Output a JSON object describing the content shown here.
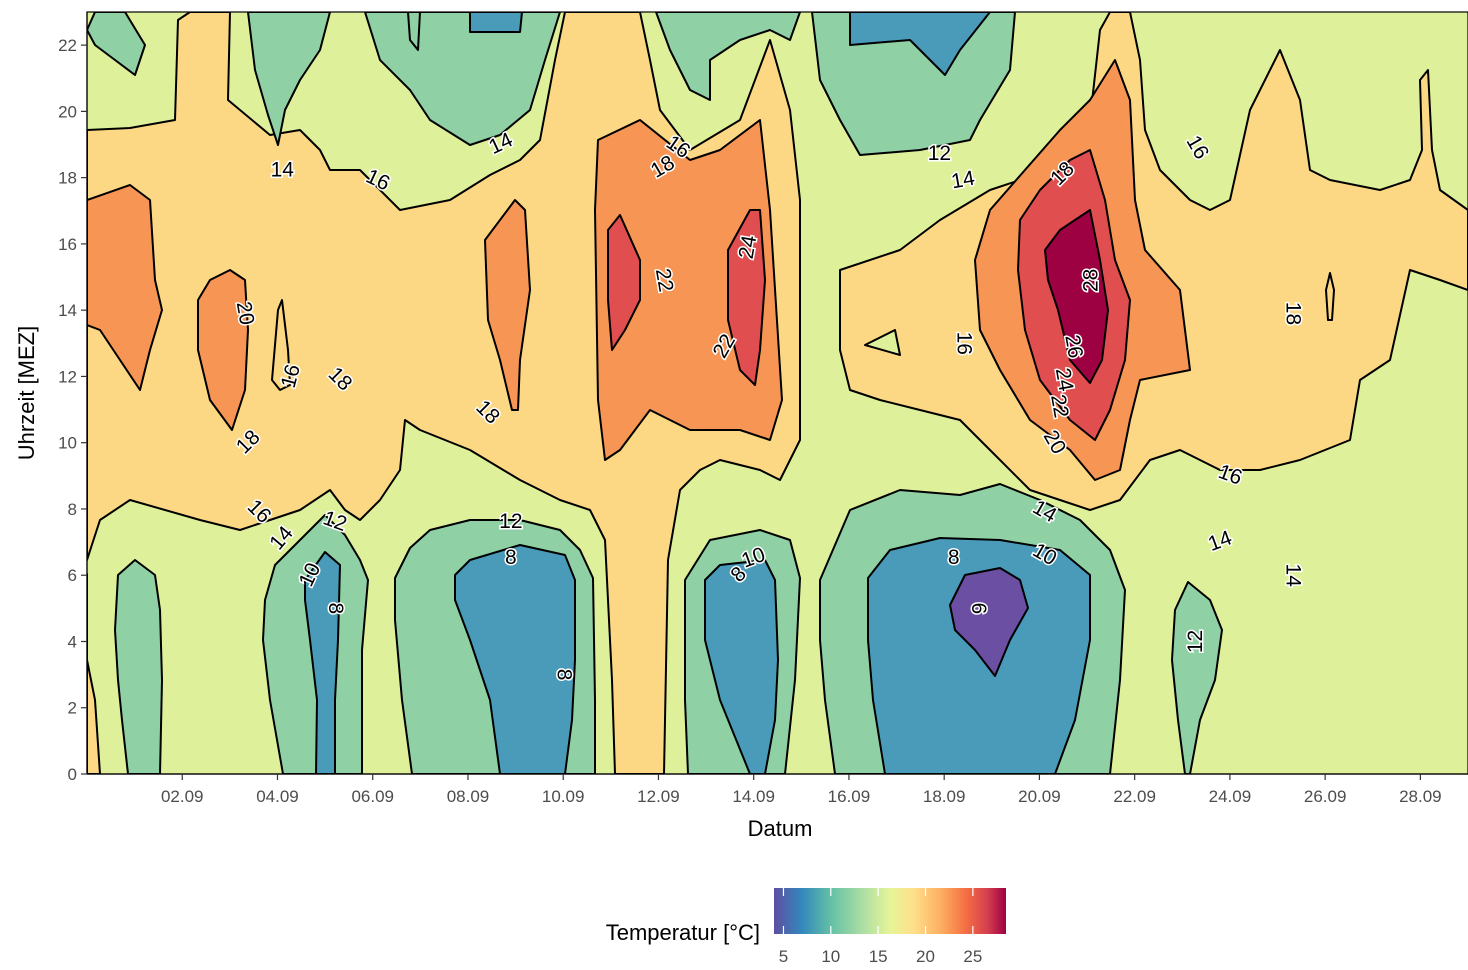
{
  "chart_data": {
    "type": "contour",
    "xlabel": "Datum",
    "ylabel": "Uhrzeit [MEZ]",
    "x_ticks": [
      "02.09",
      "04.09",
      "06.09",
      "08.09",
      "10.09",
      "12.09",
      "14.09",
      "16.09",
      "18.09",
      "20.09",
      "22.09",
      "24.09",
      "26.09",
      "28.09"
    ],
    "y_ticks": [
      "0",
      "2",
      "4",
      "6",
      "8",
      "10",
      "12",
      "14",
      "16",
      "18",
      "20",
      "22"
    ],
    "xlim_days": [
      0,
      29
    ],
    "ylim_hours": [
      0,
      23
    ],
    "legend": {
      "title": "Temperatur [°C]",
      "ticks": [
        "5",
        "10",
        "15",
        "20",
        "25"
      ],
      "range": [
        4,
        28.5
      ],
      "position": "bottom",
      "colors": [
        "#5E4FA2",
        "#3288BD",
        "#66C2A5",
        "#ABDDA4",
        "#E6F598",
        "#FEE08B",
        "#FDAE61",
        "#F46D43",
        "#D53E4F",
        "#9E0142"
      ]
    },
    "levels": [
      {
        "min": 6,
        "max": 8,
        "color": "#4A9ABA"
      },
      {
        "min": 8,
        "max": 10,
        "color": "#4A9ABA"
      },
      {
        "min": 10,
        "max": 12,
        "color": "#8FD0A4"
      },
      {
        "min": 12,
        "max": 14,
        "color": "#8FD0A4"
      },
      {
        "min": 14,
        "max": 16,
        "color": "#DFF09B"
      },
      {
        "min": 16,
        "max": 18,
        "color": "#FCD885"
      },
      {
        "min": 18,
        "max": 20,
        "color": "#FCD885"
      },
      {
        "min": 20,
        "max": 22,
        "color": "#F79555"
      },
      {
        "min": 22,
        "max": 24,
        "color": "#F79555"
      },
      {
        "min": 24,
        "max": 26,
        "color": "#E04E4F"
      },
      {
        "min": 26,
        "max": 28,
        "color": "#E04E4F"
      },
      {
        "min": 28,
        "max": 30,
        "color": "#9E0142"
      }
    ],
    "contour_labels": [
      {
        "text": "14",
        "day": 4.1,
        "hour": 18.2,
        "angle": 0
      },
      {
        "text": "16",
        "day": 6.1,
        "hour": 17.9,
        "angle": 25
      },
      {
        "text": "14",
        "day": 8.7,
        "hour": 19.0,
        "angle": -25
      },
      {
        "text": "16",
        "day": 12.4,
        "hour": 18.9,
        "angle": 35
      },
      {
        "text": "18",
        "day": 12.1,
        "hour": 18.3,
        "angle": -30
      },
      {
        "text": "12",
        "day": 17.9,
        "hour": 18.7,
        "angle": 0
      },
      {
        "text": "14",
        "day": 18.4,
        "hour": 17.9,
        "angle": -10
      },
      {
        "text": "18",
        "day": 20.5,
        "hour": 18.1,
        "angle": -45
      },
      {
        "text": "16",
        "day": 23.3,
        "hour": 18.9,
        "angle": 60
      },
      {
        "text": "20",
        "day": 3.3,
        "hour": 13.9,
        "angle": 80
      },
      {
        "text": "22",
        "day": 12.1,
        "hour": 14.9,
        "angle": 80
      },
      {
        "text": "24",
        "day": 13.9,
        "hour": 15.9,
        "angle": -80
      },
      {
        "text": "22",
        "day": 13.4,
        "hour": 12.9,
        "angle": -60
      },
      {
        "text": "16",
        "day": 4.3,
        "hour": 12.0,
        "angle": -75
      },
      {
        "text": "18",
        "day": 5.3,
        "hour": 11.9,
        "angle": 45
      },
      {
        "text": "18",
        "day": 8.4,
        "hour": 10.9,
        "angle": 45
      },
      {
        "text": "18",
        "day": 3.4,
        "hour": 10.0,
        "angle": -45
      },
      {
        "text": "16",
        "day": 18.4,
        "hour": 13.0,
        "angle": 90
      },
      {
        "text": "28",
        "day": 21.1,
        "hour": 14.9,
        "angle": -90
      },
      {
        "text": "26",
        "day": 20.7,
        "hour": 12.9,
        "angle": 80
      },
      {
        "text": "24",
        "day": 20.5,
        "hour": 11.9,
        "angle": 80
      },
      {
        "text": "22",
        "day": 20.4,
        "hour": 11.1,
        "angle": 80
      },
      {
        "text": "20",
        "day": 20.3,
        "hour": 10.0,
        "angle": 60
      },
      {
        "text": "16",
        "day": 24.0,
        "hour": 9.0,
        "angle": 20
      },
      {
        "text": "16",
        "day": 3.6,
        "hour": 7.9,
        "angle": 45
      },
      {
        "text": "14",
        "day": 4.1,
        "hour": 7.1,
        "angle": -50
      },
      {
        "text": "12",
        "day": 5.2,
        "hour": 7.6,
        "angle": 20
      },
      {
        "text": "12",
        "day": 8.9,
        "hour": 7.6,
        "angle": 0
      },
      {
        "text": "8",
        "day": 8.9,
        "hour": 6.5,
        "angle": 0
      },
      {
        "text": "10",
        "day": 4.7,
        "hour": 6.0,
        "angle": -65
      },
      {
        "text": "8",
        "day": 5.2,
        "hour": 5.0,
        "angle": 90
      },
      {
        "text": "8",
        "day": 10.0,
        "hour": 3.0,
        "angle": 90
      },
      {
        "text": "10",
        "day": 14.0,
        "hour": 6.5,
        "angle": -20
      },
      {
        "text": "8",
        "day": 13.7,
        "hour": 6.0,
        "angle": -45
      },
      {
        "text": "8",
        "day": 18.2,
        "hour": 6.5,
        "angle": 0
      },
      {
        "text": "10",
        "day": 20.1,
        "hour": 6.6,
        "angle": 30
      },
      {
        "text": "14",
        "day": 20.1,
        "hour": 7.9,
        "angle": 30
      },
      {
        "text": "6",
        "day": 18.7,
        "hour": 5.0,
        "angle": 90
      },
      {
        "text": "14",
        "day": 23.8,
        "hour": 7.0,
        "angle": -20
      },
      {
        "text": "12",
        "day": 23.3,
        "hour": 4.0,
        "angle": -90
      },
      {
        "text": "14",
        "day": 25.3,
        "hour": 6.0,
        "angle": 90
      },
      {
        "text": "18",
        "day": 25.3,
        "hour": 13.9,
        "angle": 90
      }
    ]
  }
}
